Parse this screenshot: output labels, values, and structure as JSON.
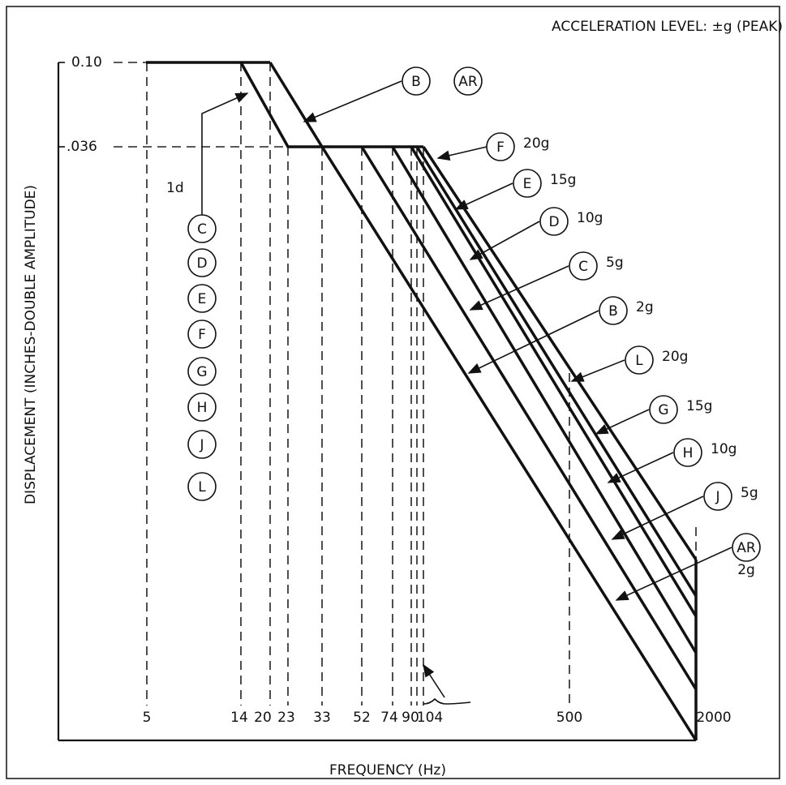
{
  "title": "ACCELERATION LEVEL: ±g (PEAK)",
  "y_axis_label": "DISPLACEMENT (INCHES-DOUBLE AMPLITUDE)",
  "x_axis_label": "FREQUENCY (Hz)",
  "y_ticks": [
    "0.10",
    ".036"
  ],
  "x_ticks": [
    "5",
    "14",
    "20",
    "23",
    "33",
    "52",
    "74",
    "90",
    "104",
    "500",
    "2000"
  ],
  "note": "1d",
  "legend_letters": [
    "C",
    "D",
    "E",
    "F",
    "G",
    "H",
    "J",
    "L"
  ],
  "top_callout": [
    "B",
    "AR"
  ],
  "callouts": [
    {
      "letter": "F",
      "level": "20g"
    },
    {
      "letter": "E",
      "level": "15g"
    },
    {
      "letter": "D",
      "level": "10g"
    },
    {
      "letter": "C",
      "level": "5g"
    },
    {
      "letter": "B",
      "level": "2g"
    },
    {
      "letter": "L",
      "level": "20g"
    },
    {
      "letter": "G",
      "level": "15g"
    },
    {
      "letter": "H",
      "level": "10g"
    },
    {
      "letter": "J",
      "level": "5g"
    },
    {
      "letter": "AR",
      "level": "2g"
    }
  ]
}
